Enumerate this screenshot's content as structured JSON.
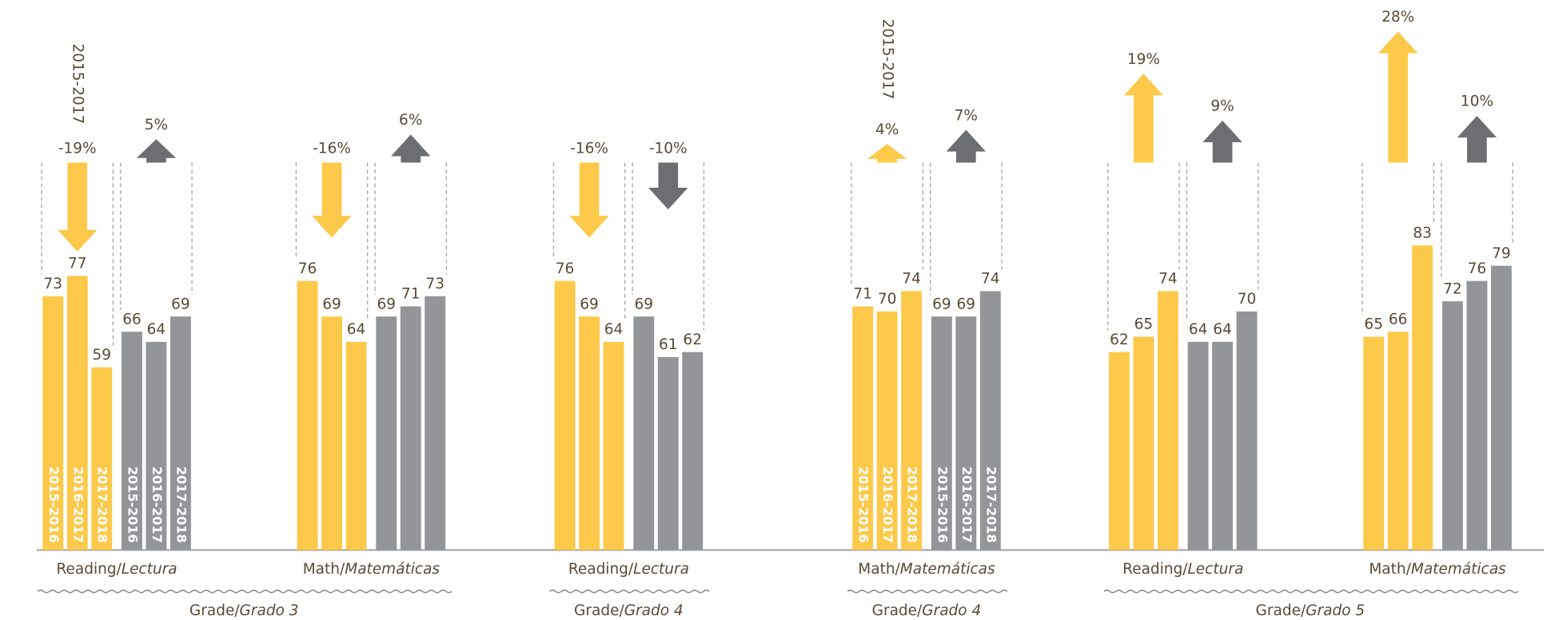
{
  "chart_data": {
    "type": "bar",
    "categories": [
      "2015-2016",
      "2016-2017",
      "2017-2018"
    ],
    "ylim": [
      23,
      100
    ],
    "separator": "/",
    "grades": [
      {
        "name": "Grade",
        "name_es": "Grado 3",
        "subjects": [
          {
            "name": "Reading",
            "name_es": "Lectura",
            "period": "2015-2017",
            "year_labels": true,
            "series": [
              {
                "color": "#fdc94a",
                "arrow_color": "#fdc94a",
                "values": [
                  73,
                  77,
                  59
                ],
                "change": {
                  "value": -19,
                  "label": "-19%"
                }
              },
              {
                "color": "#939598",
                "arrow_color": "#6d6e71",
                "values": [
                  66,
                  64,
                  69
                ],
                "change": {
                  "value": 5,
                  "label": "5%"
                }
              }
            ]
          },
          {
            "name": "Math",
            "name_es": "Matemáticas",
            "series": [
              {
                "color": "#fdc94a",
                "arrow_color": "#fdc94a",
                "values": [
                  76,
                  69,
                  64
                ],
                "change": {
                  "value": -16,
                  "label": "-16%"
                }
              },
              {
                "color": "#939598",
                "arrow_color": "#6d6e71",
                "values": [
                  69,
                  71,
                  73
                ],
                "change": {
                  "value": 6,
                  "label": "6%"
                }
              }
            ]
          }
        ]
      },
      {
        "name": "Grade",
        "name_es": "Grado 4",
        "subjects": [
          {
            "name": "Reading",
            "name_es": "Lectura",
            "series": [
              {
                "color": "#fdc94a",
                "arrow_color": "#fdc94a",
                "values": [
                  76,
                  69,
                  64
                ],
                "change": {
                  "value": -16,
                  "label": "-16%"
                }
              },
              {
                "color": "#939598",
                "arrow_color": "#6d6e71",
                "values": [
                  69,
                  61,
                  62
                ],
                "change": {
                  "value": -10,
                  "label": "-10%"
                }
              }
            ]
          }
        ]
      },
      {
        "name": "Grade",
        "name_es": "Grado 4",
        "subjects": [
          {
            "name": "Math",
            "name_es": "Matemáticas",
            "period": "2015-2017",
            "year_labels": true,
            "series": [
              {
                "color": "#fdc94a",
                "arrow_color": "#fdc94a",
                "values": [
                  71,
                  70,
                  74
                ],
                "change": {
                  "value": 4,
                  "label": "4%"
                }
              },
              {
                "color": "#939598",
                "arrow_color": "#6d6e71",
                "values": [
                  69,
                  69,
                  74
                ],
                "change": {
                  "value": 7,
                  "label": "7%"
                }
              }
            ]
          }
        ]
      },
      {
        "name": "Grade",
        "name_es": "Grado 5",
        "subjects": [
          {
            "name": "Reading",
            "name_es": "Lectura",
            "series": [
              {
                "color": "#fdc94a",
                "arrow_color": "#fdc94a",
                "values": [
                  62,
                  65,
                  74
                ],
                "change": {
                  "value": 19,
                  "label": "19%"
                }
              },
              {
                "color": "#939598",
                "arrow_color": "#6d6e71",
                "values": [
                  64,
                  64,
                  70
                ],
                "change": {
                  "value": 9,
                  "label": "9%"
                }
              }
            ]
          },
          {
            "name": "Math",
            "name_es": "Matemáticas",
            "series": [
              {
                "color": "#fdc94a",
                "arrow_color": "#fdc94a",
                "values": [
                  65,
                  66,
                  83
                ],
                "change": {
                  "value": 28,
                  "label": "28%"
                }
              },
              {
                "color": "#939598",
                "arrow_color": "#6d6e71",
                "values": [
                  72,
                  76,
                  79
                ],
                "change": {
                  "value": 10,
                  "label": "10%"
                }
              }
            ]
          }
        ]
      }
    ]
  }
}
